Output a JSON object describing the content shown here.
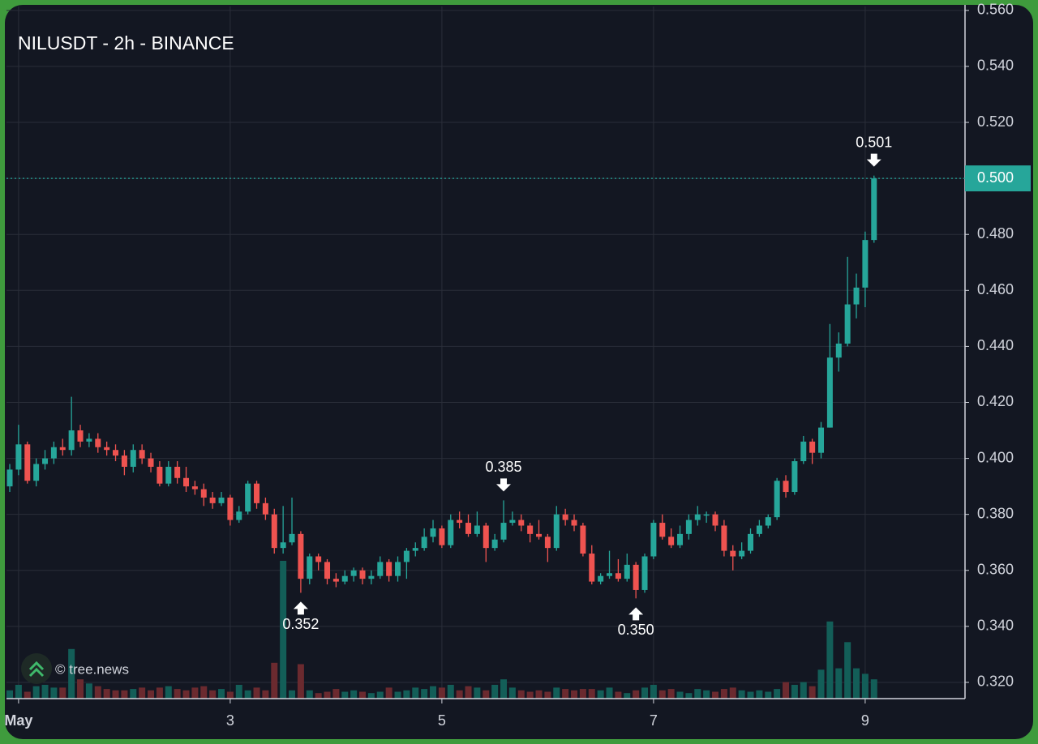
{
  "chart_data": {
    "type": "candlestick",
    "title": "NILUSDT - 2h - BINANCE",
    "watermark": "© tree.news",
    "up_color": "#26a69a",
    "down_color": "#ef5350",
    "volume_up_color": "#135e58",
    "volume_down_color": "#6b2a2f",
    "xlim": [
      -0.37,
      108.32
    ],
    "xticks": [
      {
        "value": 1,
        "label": "May"
      },
      {
        "value": 25,
        "label": "3"
      },
      {
        "value": 49,
        "label": "5"
      },
      {
        "value": 73,
        "label": "7"
      },
      {
        "value": 97,
        "label": "9"
      }
    ],
    "ylim": [
      0.3142,
      0.5614
    ],
    "yticks": [
      {
        "value": 0.32,
        "label": "0.320"
      },
      {
        "value": 0.34,
        "label": "0.340"
      },
      {
        "value": 0.36,
        "label": "0.360"
      },
      {
        "value": 0.38,
        "label": "0.380"
      },
      {
        "value": 0.4,
        "label": "0.400"
      },
      {
        "value": 0.42,
        "label": "0.420"
      },
      {
        "value": 0.44,
        "label": "0.440"
      },
      {
        "value": 0.46,
        "label": "0.460"
      },
      {
        "value": 0.48,
        "label": "0.480"
      },
      {
        "value": 0.5,
        "label": "0.500"
      },
      {
        "value": 0.52,
        "label": "0.520"
      },
      {
        "value": 0.54,
        "label": "0.540"
      },
      {
        "value": 0.56,
        "label": "0.560"
      }
    ],
    "grid": true,
    "last_price": {
      "value": 0.5,
      "label": "0.500"
    },
    "annotations": [
      {
        "label": "0.352",
        "value": 0.352,
        "kind": "low"
      },
      {
        "label": "0.385",
        "value": 0.385,
        "kind": "high"
      },
      {
        "label": "0.350",
        "value": 0.35,
        "kind": "low"
      },
      {
        "label": "0.501",
        "value": 0.501,
        "kind": "high"
      }
    ],
    "open": [
      0.39,
      0.396,
      0.405,
      0.392,
      0.398,
      0.4,
      0.404,
      0.403,
      0.41,
      0.406,
      0.407,
      0.404,
      0.403,
      0.401,
      0.397,
      0.403,
      0.4,
      0.397,
      0.391,
      0.397,
      0.393,
      0.39,
      0.389,
      0.386,
      0.384,
      0.386,
      0.378,
      0.381,
      0.391,
      0.384,
      0.38,
      0.368,
      0.37,
      0.373,
      0.357,
      0.365,
      0.363,
      0.357,
      0.356,
      0.358,
      0.36,
      0.357,
      0.358,
      0.363,
      0.358,
      0.363,
      0.367,
      0.368,
      0.372,
      0.375,
      0.369,
      0.378,
      0.377,
      0.373,
      0.376,
      0.368,
      0.371,
      0.377,
      0.378,
      0.376,
      0.373,
      0.372,
      0.368,
      0.38,
      0.378,
      0.376,
      0.366,
      0.356,
      0.358,
      0.359,
      0.357,
      0.362,
      0.353,
      0.365,
      0.377,
      0.372,
      0.369,
      0.373,
      0.378,
      0.38,
      0.38,
      0.376,
      0.367,
      0.365,
      0.367,
      0.373,
      0.376,
      0.379,
      0.392,
      0.388,
      0.399,
      0.406,
      0.402,
      0.411,
      0.436,
      0.441,
      0.455,
      0.461,
      0.478
    ],
    "high": [
      0.398,
      0.412,
      0.406,
      0.4,
      0.403,
      0.406,
      0.407,
      0.422,
      0.412,
      0.409,
      0.409,
      0.406,
      0.405,
      0.403,
      0.405,
      0.405,
      0.402,
      0.399,
      0.399,
      0.399,
      0.397,
      0.392,
      0.391,
      0.388,
      0.388,
      0.387,
      0.383,
      0.392,
      0.392,
      0.386,
      0.382,
      0.383,
      0.386,
      0.374,
      0.366,
      0.366,
      0.364,
      0.359,
      0.36,
      0.361,
      0.361,
      0.36,
      0.365,
      0.364,
      0.365,
      0.368,
      0.37,
      0.375,
      0.378,
      0.376,
      0.38,
      0.381,
      0.38,
      0.381,
      0.377,
      0.373,
      0.385,
      0.381,
      0.38,
      0.377,
      0.378,
      0.373,
      0.383,
      0.382,
      0.38,
      0.377,
      0.369,
      0.359,
      0.367,
      0.364,
      0.366,
      0.363,
      0.366,
      0.378,
      0.38,
      0.375,
      0.376,
      0.38,
      0.383,
      0.381,
      0.381,
      0.378,
      0.369,
      0.37,
      0.375,
      0.378,
      0.38,
      0.393,
      0.394,
      0.4,
      0.408,
      0.407,
      0.413,
      0.448,
      0.445,
      0.472,
      0.466,
      0.481,
      0.501
    ],
    "low": [
      0.388,
      0.394,
      0.391,
      0.39,
      0.396,
      0.398,
      0.401,
      0.401,
      0.404,
      0.404,
      0.402,
      0.401,
      0.399,
      0.394,
      0.395,
      0.398,
      0.395,
      0.39,
      0.39,
      0.391,
      0.388,
      0.387,
      0.383,
      0.382,
      0.383,
      0.376,
      0.377,
      0.38,
      0.382,
      0.378,
      0.366,
      0.366,
      0.369,
      0.352,
      0.355,
      0.36,
      0.355,
      0.354,
      0.355,
      0.356,
      0.355,
      0.355,
      0.357,
      0.356,
      0.356,
      0.357,
      0.365,
      0.367,
      0.37,
      0.368,
      0.368,
      0.375,
      0.372,
      0.372,
      0.363,
      0.367,
      0.37,
      0.376,
      0.374,
      0.37,
      0.371,
      0.363,
      0.367,
      0.376,
      0.374,
      0.365,
      0.355,
      0.355,
      0.357,
      0.356,
      0.356,
      0.35,
      0.352,
      0.364,
      0.371,
      0.368,
      0.368,
      0.371,
      0.376,
      0.377,
      0.374,
      0.365,
      0.36,
      0.364,
      0.366,
      0.372,
      0.375,
      0.378,
      0.386,
      0.387,
      0.398,
      0.398,
      0.4,
      0.411,
      0.431,
      0.44,
      0.45,
      0.454,
      0.477
    ],
    "close": [
      0.396,
      0.405,
      0.392,
      0.398,
      0.4,
      0.404,
      0.403,
      0.41,
      0.406,
      0.407,
      0.404,
      0.403,
      0.401,
      0.397,
      0.403,
      0.4,
      0.397,
      0.391,
      0.397,
      0.393,
      0.39,
      0.389,
      0.386,
      0.384,
      0.386,
      0.378,
      0.381,
      0.391,
      0.384,
      0.38,
      0.368,
      0.37,
      0.373,
      0.357,
      0.365,
      0.363,
      0.357,
      0.356,
      0.358,
      0.36,
      0.357,
      0.358,
      0.363,
      0.358,
      0.363,
      0.367,
      0.368,
      0.372,
      0.375,
      0.369,
      0.378,
      0.377,
      0.373,
      0.376,
      0.368,
      0.371,
      0.377,
      0.378,
      0.376,
      0.373,
      0.372,
      0.368,
      0.38,
      0.378,
      0.376,
      0.366,
      0.356,
      0.358,
      0.359,
      0.357,
      0.362,
      0.353,
      0.365,
      0.377,
      0.372,
      0.369,
      0.373,
      0.378,
      0.38,
      0.38,
      0.376,
      0.367,
      0.365,
      0.367,
      0.373,
      0.376,
      0.379,
      0.392,
      0.388,
      0.399,
      0.406,
      0.402,
      0.411,
      0.436,
      0.441,
      0.455,
      0.461,
      0.478,
      0.5
    ],
    "volume": [
      6,
      10,
      5,
      9,
      10,
      8,
      8,
      36,
      14,
      11,
      9,
      7,
      6,
      6,
      7,
      8,
      6,
      8,
      9,
      7,
      6,
      8,
      9,
      6,
      7,
      5,
      10,
      6,
      8,
      6,
      26,
      100,
      6,
      25,
      6,
      4,
      5,
      7,
      5,
      6,
      5,
      4,
      5,
      8,
      5,
      6,
      8,
      7,
      9,
      8,
      10,
      6,
      9,
      8,
      6,
      10,
      14,
      8,
      6,
      5,
      6,
      5,
      8,
      7,
      6,
      7,
      7,
      6,
      8,
      5,
      4,
      6,
      8,
      10,
      6,
      7,
      5,
      4,
      7,
      6,
      5,
      7,
      8,
      6,
      5,
      6,
      5,
      7,
      12,
      10,
      12,
      9,
      21,
      56,
      22,
      41,
      22,
      18,
      14
    ]
  }
}
